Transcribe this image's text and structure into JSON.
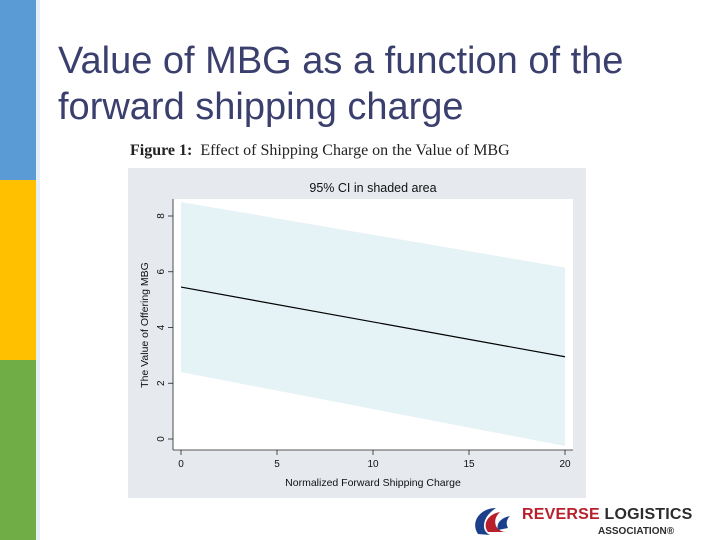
{
  "slide": {
    "title": "Value of MBG as a function of the forward shipping charge",
    "accent_colors": {
      "blue": "#5b9bd5",
      "yellow": "#ffc000",
      "green": "#70ad47",
      "title": "#3a3f6e"
    }
  },
  "figure": {
    "number_label": "Figure 1:",
    "caption": "Effect of Shipping Charge on the Value of MBG"
  },
  "chart_data": {
    "type": "line",
    "title": "95% CI in shaded area",
    "xlabel": "Normalized Forward Shipping Charge",
    "ylabel": "The Value of Offering MBG",
    "xlim": [
      0,
      20
    ],
    "ylim": [
      0,
      8
    ],
    "x_ticks": [
      0,
      5,
      10,
      15,
      20
    ],
    "y_ticks": [
      0,
      2,
      4,
      6,
      8
    ],
    "grid": false,
    "series": [
      {
        "x": [
          0,
          20
        ],
        "y": [
          5.45,
          2.95
        ],
        "color": "#000000"
      }
    ],
    "ci_band": {
      "x": [
        0,
        20
      ],
      "upper": [
        8.5,
        6.15
      ],
      "lower": [
        2.4,
        -0.25
      ],
      "color": "#e5f2f6"
    }
  },
  "logo": {
    "line1_a": "REVERSE",
    "line1_b": "LOGISTICS",
    "line2": "ASSOCIATION®",
    "icon": "rla-swirl-logo-icon"
  }
}
